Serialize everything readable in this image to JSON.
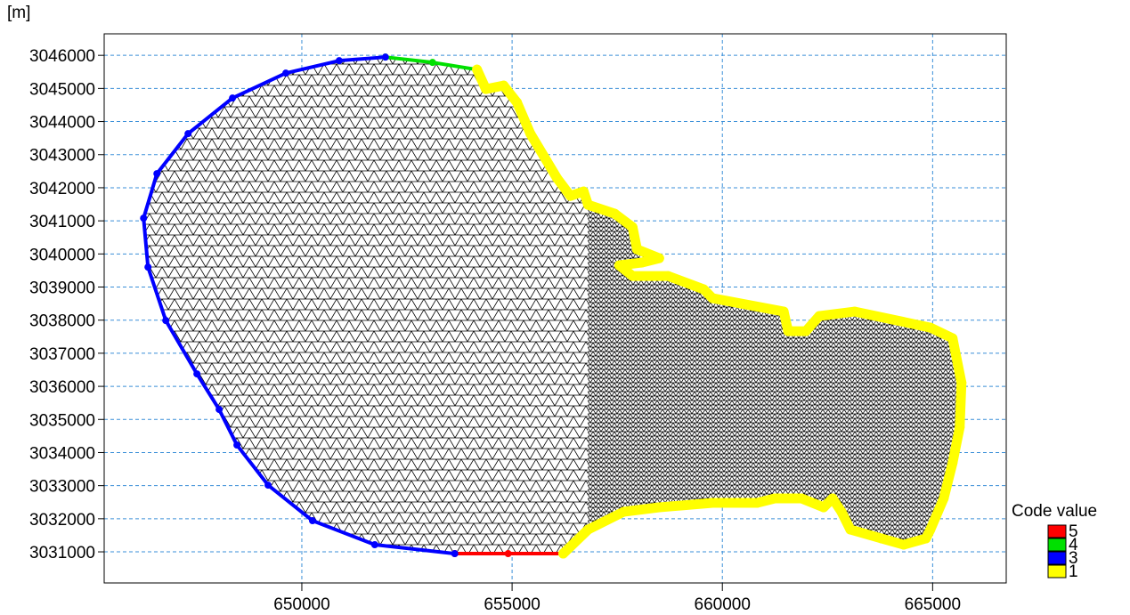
{
  "chart_data": {
    "type": "mesh",
    "y_unit_label": "[m]",
    "xlim": [
      645300,
      666750
    ],
    "ylim": [
      3030060,
      3046650
    ],
    "xticks": [
      650000,
      655000,
      660000,
      665000
    ],
    "yticks": [
      3031000,
      3032000,
      3033000,
      3034000,
      3035000,
      3036000,
      3037000,
      3038000,
      3039000,
      3040000,
      3041000,
      3042000,
      3043000,
      3044000,
      3045000,
      3046000
    ],
    "grid": true,
    "legend_title": "Code value",
    "legend_position": "lower right",
    "series": [
      {
        "name": "5",
        "color": "#ff0000",
        "x": [
          656215,
          654905,
          653636
        ],
        "y": [
          3030947,
          3030946,
          3030946
        ]
      },
      {
        "name": "4",
        "color": "#00e000",
        "x": [
          651987,
          653108,
          654165
        ],
        "y": [
          3045946,
          3045785,
          3045570
        ]
      },
      {
        "name": "3",
        "color": "#0000ff",
        "x": [
          653636,
          651734,
          650254,
          649197,
          648457,
          648034,
          647505,
          646765,
          646342,
          646237,
          646554,
          647294,
          648351,
          649619,
          650888,
          651987
        ],
        "y": [
          3030946,
          3031215,
          3031941,
          3033016,
          3034226,
          3035301,
          3036376,
          3037989,
          3039602,
          3041081,
          3042425,
          3043634,
          3044710,
          3045462,
          3045839,
          3045946
        ]
      },
      {
        "name": "1",
        "color": "#ffff00",
        "x": [
          654165,
          654376,
          654799,
          655116,
          655433,
          655750,
          656067,
          656384,
          656701,
          656807,
          657441,
          657864,
          657970,
          658498,
          658075,
          657547,
          657864,
          658710,
          659555,
          659767,
          661458,
          661564,
          661986,
          662303,
          663149,
          664946,
          665474,
          665686,
          665644,
          665474,
          665263,
          664946,
          664840,
          664312,
          663783,
          663043,
          662832,
          662621,
          662409,
          661881,
          661247,
          660824,
          659767,
          658498,
          657653,
          656807,
          656215
        ],
        "y": [
          3045570,
          3044979,
          3045086,
          3044575,
          3043635,
          3042963,
          3042291,
          3041753,
          3041887,
          3041484,
          3041215,
          3040812,
          3040140,
          3039871,
          3039737,
          3039656,
          3039334,
          3039334,
          3038931,
          3038662,
          3038259,
          3037667,
          3037667,
          3038124,
          3038259,
          3037775,
          3037452,
          3036108,
          3034764,
          3033689,
          3032614,
          3031673,
          3031404,
          3031216,
          3031404,
          3031673,
          3032211,
          3032614,
          3032345,
          3032614,
          3032614,
          3032479,
          3032479,
          3032345,
          3032211,
          3031673,
          3030947
        ]
      }
    ]
  }
}
